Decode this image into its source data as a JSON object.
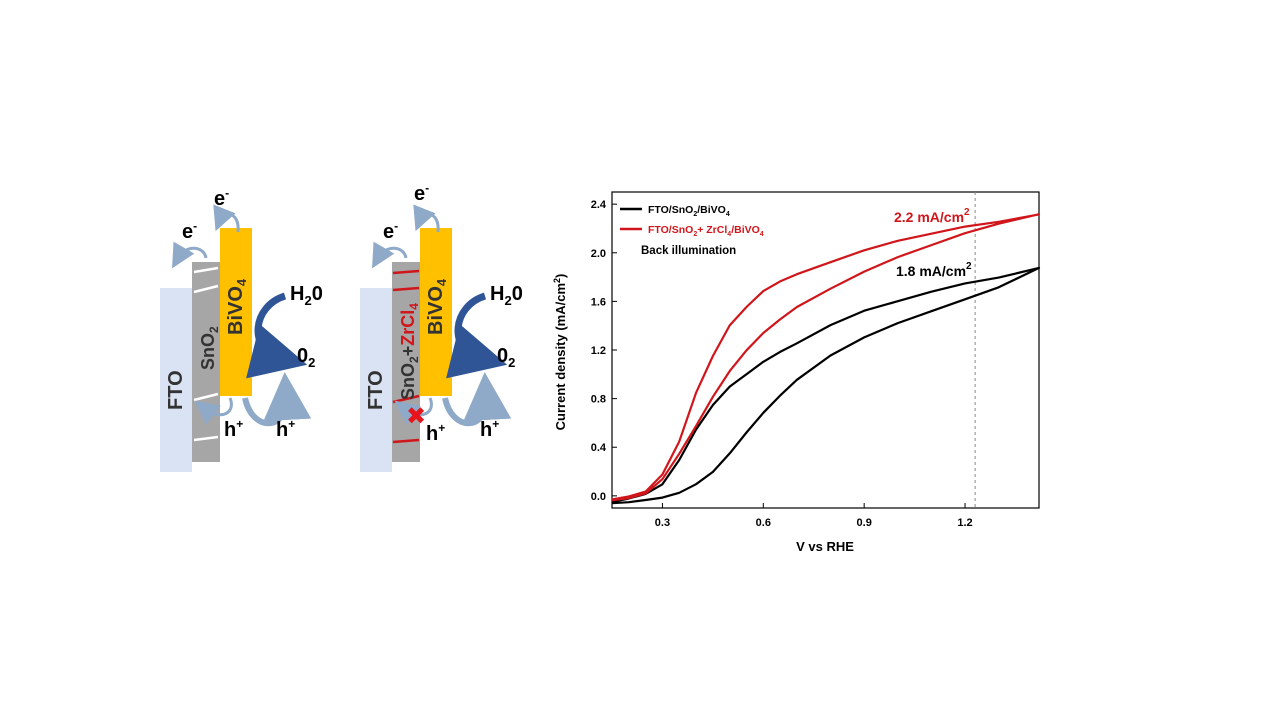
{
  "diagram_left": {
    "fto_label": "FTO",
    "sno2_label": "SnO",
    "sno2_sub": "2",
    "bivo4_label": "BiVO",
    "bivo4_sub": "4",
    "electron_top": "e",
    "electron_top_sup": "-",
    "electron_left": "e",
    "electron_left_sup": "-",
    "water": "H",
    "water_tail": "0",
    "water_sub": "2",
    "oxygen": "0",
    "oxygen_sub": "2",
    "hole_1": "h",
    "hole_1_sup": "+",
    "hole_2": "h",
    "hole_2_sup": "+"
  },
  "diagram_right": {
    "fto_label": "FTO",
    "sno2_label": "SnO",
    "sno2_sub": "2",
    "plus": "+",
    "zrcl_label": "ZrCl",
    "zrcl_sub": "4",
    "bivo4_label": "BiVO",
    "bivo4_sub": "4",
    "electron_top": "e",
    "electron_top_sup": "-",
    "electron_left": "e",
    "electron_left_sup": "-",
    "water": "H",
    "water_tail": "0",
    "water_sub": "2",
    "oxygen": "0",
    "oxygen_sub": "2",
    "hole_1": "h",
    "hole_1_sup": "+",
    "hole_2": "h",
    "hole_2_sup": "+",
    "block_mark": "✖"
  },
  "colors": {
    "fto": "#dae3f3",
    "sno2": "#a6a6a6",
    "bivo4": "#ffc000",
    "arrow": "#2f5597",
    "arrow_light": "#8fa9c9",
    "series_black": "#000000",
    "series_red": "#d0161b"
  },
  "chart_data": {
    "type": "line",
    "xlabel": "V vs RHE",
    "ylabel": "Current density (mA/cm",
    "ylabel_sup": "2",
    "ylabel_tail": ")",
    "xlim": [
      0.15,
      1.42
    ],
    "ylim": [
      -0.1,
      2.5
    ],
    "xticks": [
      "0.3",
      "0.6",
      "0.9",
      "1.2"
    ],
    "yticks": [
      "0.0",
      "0.4",
      "0.8",
      "1.2",
      "1.6",
      "2.0",
      "2.4"
    ],
    "reference_line_x": 1.23,
    "legend": {
      "entries": [
        {
          "label": "FTO/SnO",
          "sub": "2",
          "tail": "/BiVO",
          "sub2": "4",
          "color": "#000000"
        },
        {
          "label": "FTO/SnO",
          "sub": "2",
          "tail": "+ ZrCl",
          "sub2": "4",
          "tail2": "/BiVO",
          "sub3": "4",
          "color": "#d0161b"
        }
      ],
      "note": "Back illumination",
      "placement": "top-left"
    },
    "annotations": [
      {
        "text": "2.2 mA/cm",
        "sup": "2",
        "color": "#d0161b"
      },
      {
        "text": "1.8 mA/cm",
        "sup": "2",
        "color": "#000000"
      }
    ],
    "series": [
      {
        "color": "#000000",
        "upper": {
          "x": [
            0.15,
            0.2,
            0.25,
            0.3,
            0.35,
            0.4,
            0.45,
            0.5,
            0.55,
            0.6,
            0.65,
            0.7,
            0.8,
            0.9,
            1.0,
            1.1,
            1.2,
            1.3,
            1.42
          ],
          "y": [
            -0.05,
            -0.02,
            0.02,
            0.1,
            0.3,
            0.55,
            0.75,
            0.9,
            1.0,
            1.1,
            1.18,
            1.25,
            1.4,
            1.52,
            1.6,
            1.68,
            1.75,
            1.8,
            1.88
          ]
        },
        "lower": {
          "x": [
            0.15,
            0.2,
            0.25,
            0.3,
            0.35,
            0.4,
            0.45,
            0.5,
            0.55,
            0.6,
            0.65,
            0.7,
            0.8,
            0.9,
            1.0,
            1.1,
            1.2,
            1.3,
            1.42
          ],
          "y": [
            -0.06,
            -0.05,
            -0.03,
            -0.01,
            0.03,
            0.1,
            0.2,
            0.35,
            0.52,
            0.68,
            0.82,
            0.95,
            1.15,
            1.3,
            1.42,
            1.52,
            1.62,
            1.72,
            1.88
          ]
        }
      },
      {
        "color": "#d0161b",
        "upper": {
          "x": [
            0.15,
            0.2,
            0.25,
            0.3,
            0.35,
            0.4,
            0.45,
            0.5,
            0.55,
            0.6,
            0.65,
            0.7,
            0.8,
            0.9,
            1.0,
            1.1,
            1.2,
            1.3,
            1.42
          ],
          "y": [
            -0.03,
            0.0,
            0.04,
            0.18,
            0.45,
            0.85,
            1.15,
            1.4,
            1.55,
            1.68,
            1.76,
            1.82,
            1.92,
            2.02,
            2.1,
            2.16,
            2.22,
            2.26,
            2.32
          ]
        },
        "lower": {
          "x": [
            0.15,
            0.2,
            0.25,
            0.3,
            0.35,
            0.4,
            0.45,
            0.5,
            0.55,
            0.6,
            0.65,
            0.7,
            0.8,
            0.9,
            1.0,
            1.1,
            1.2,
            1.3,
            1.42
          ],
          "y": [
            -0.04,
            -0.02,
            0.02,
            0.14,
            0.35,
            0.58,
            0.82,
            1.03,
            1.2,
            1.34,
            1.45,
            1.55,
            1.7,
            1.84,
            1.96,
            2.06,
            2.16,
            2.24,
            2.32
          ]
        }
      }
    ]
  }
}
